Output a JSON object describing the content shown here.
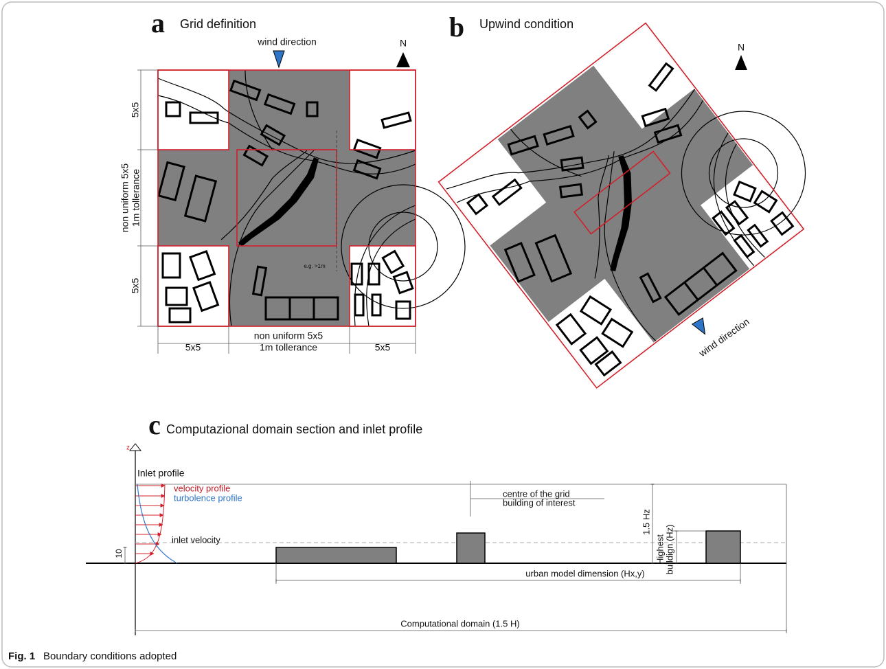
{
  "panel_a": {
    "label": "a",
    "title": "Grid definition",
    "wind_direction": "wind direction",
    "north": "N",
    "left_top": "5x5",
    "left_middle": [
      "non uniform 5x5",
      "1m tollerance"
    ],
    "left_bottom": "5x5",
    "bottom_left": "5x5",
    "bottom_middle": [
      "non uniform 5x5",
      "1m tollerance"
    ],
    "bottom_right": "5x5",
    "tolerance_note": "e.g. >1m"
  },
  "panel_b": {
    "label": "b",
    "title": "Upwind condition",
    "north": "N",
    "wind_direction": "wind direction"
  },
  "panel_c": {
    "label": "c",
    "title": "Computazional domain section and inlet profile",
    "z_axis": "z",
    "inlet_profile": "Inlet profile",
    "velocity_profile": "velocity profile",
    "turbulence_profile": "turbolence profile",
    "inlet_velocity": "inlet velocity",
    "reference_height": "10",
    "centre_note": [
      "centre of the grid",
      "building of interest"
    ],
    "height_label": "1.5 Hz",
    "highest_building": [
      "Highest",
      "buildign (Hz)"
    ],
    "urban_model": "urban model dimension (Hx,y)",
    "computational_domain": "Computational domain (1.5 H)"
  },
  "caption": {
    "label": "Fig. 1",
    "text": "Boundary conditions adopted"
  }
}
